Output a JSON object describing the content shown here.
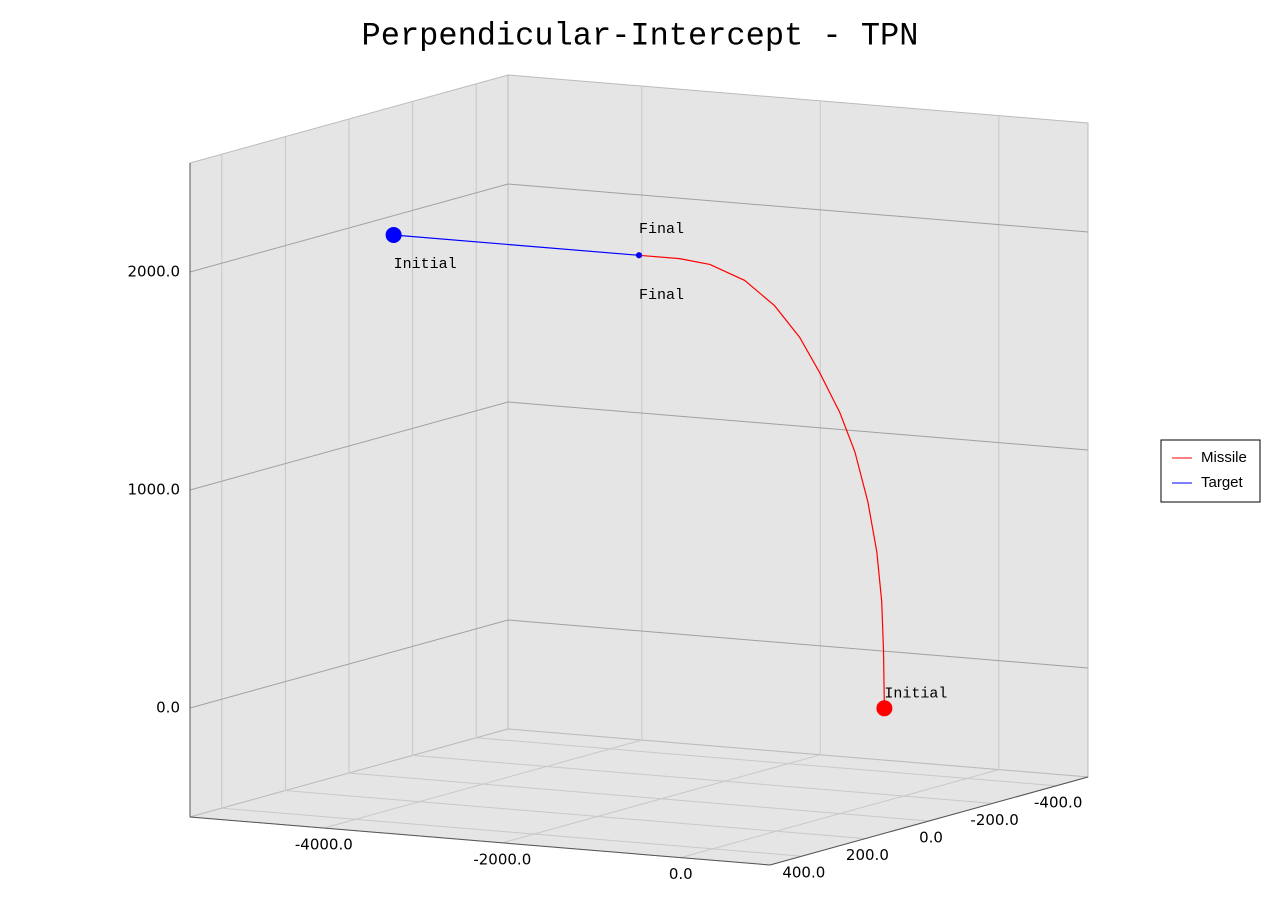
{
  "chart_data": {
    "type": "line3d",
    "title": "Perpendicular-Intercept - TPN",
    "series": [
      {
        "name": "Missile",
        "color": "#ff0000",
        "x": [
          500,
          490,
          470,
          415,
          315,
          170,
          0,
          -225,
          -450,
          -730,
          -1065,
          -1455,
          -1795,
          -2250
        ],
        "y": [
          0,
          0,
          0,
          0,
          0,
          0,
          0,
          0,
          0,
          0,
          0,
          0,
          0,
          0
        ],
        "z": [
          0,
          265,
          490,
          715,
          940,
          1165,
          1340,
          1515,
          1670,
          1805,
          1910,
          1970,
          1985,
          1985
        ],
        "start_label": "Initial",
        "end_label": "Final"
      },
      {
        "name": "Target",
        "color": "#0000ff",
        "x": [
          -5000,
          -2250
        ],
        "y": [
          0,
          0
        ],
        "z": [
          1985,
          1985
        ],
        "start_label": "Initial",
        "end_label": "Final"
      }
    ],
    "xlim": [
      -5500,
      1000
    ],
    "ylim": [
      -500,
      500
    ],
    "zlim": [
      -500,
      2500
    ],
    "xticks": [
      {
        "value": -4000,
        "label": "-4000.0"
      },
      {
        "value": -2000,
        "label": "-2000.0"
      },
      {
        "value": 0,
        "label": "0.0"
      }
    ],
    "yticks": [
      {
        "value": 400,
        "label": "400.0"
      },
      {
        "value": 200,
        "label": "200.0"
      },
      {
        "value": 0,
        "label": "0.0"
      },
      {
        "value": -200,
        "label": "-200.0"
      },
      {
        "value": -400,
        "label": "-400.0"
      }
    ],
    "zticks": [
      {
        "value": 0,
        "label": "0.0"
      },
      {
        "value": 1000,
        "label": "1000.0"
      },
      {
        "value": 2000,
        "label": "2000.0"
      }
    ],
    "grid": true,
    "legend": "right"
  }
}
